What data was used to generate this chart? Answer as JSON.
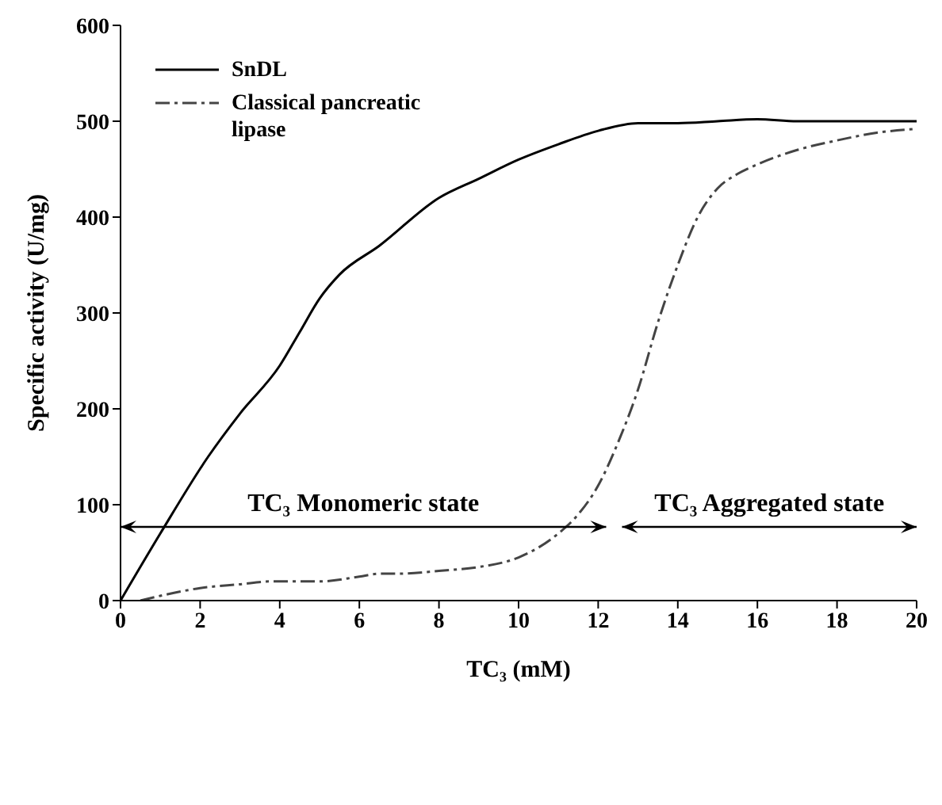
{
  "chart_data": {
    "type": "line",
    "xlabel": "TC₃ (mM)",
    "ylabel": "Specific activity (U/mg)",
    "xlim": [
      0,
      20
    ],
    "xticks": [
      0,
      2,
      4,
      6,
      8,
      10,
      12,
      14,
      16,
      18,
      20
    ],
    "ylim": [
      0,
      600
    ],
    "yticks": [
      0,
      100,
      200,
      300,
      400,
      500,
      600
    ],
    "grid": false,
    "legend": "top left",
    "marker": "none",
    "annotations": [
      "TC₃ Monomeric state",
      "TC₃ Aggregated state"
    ],
    "series": [
      {
        "name": "SnDL",
        "color": "#000000",
        "line_style": "solid",
        "x": [
          0,
          1,
          2.2,
          3,
          4,
          4.5,
          5,
          5.5,
          6.5,
          8,
          9,
          10,
          11,
          12,
          13,
          14,
          15,
          16,
          17,
          18,
          20
        ],
        "values": [
          0,
          70,
          150,
          195,
          245,
          280,
          315,
          340,
          370,
          420,
          440,
          460,
          476,
          490,
          498,
          498,
          500,
          502,
          500,
          500,
          500
        ]
      },
      {
        "name": "Classical pancreatic lipase",
        "color": "#444444",
        "line_style": "dashed",
        "x": [
          0.5,
          1,
          2,
          3,
          3.8,
          5,
          6,
          6.5,
          7,
          8,
          9,
          10,
          11,
          11.5,
          12,
          12.5,
          13,
          13.5,
          14,
          14.5,
          15,
          15.5,
          16,
          17,
          18,
          19,
          20
        ],
        "values": [
          0,
          5,
          13,
          17,
          20,
          20,
          25,
          28,
          28,
          31,
          35,
          45,
          70,
          90,
          120,
          165,
          220,
          290,
          350,
          400,
          430,
          445,
          455,
          470,
          480,
          488,
          492
        ]
      }
    ]
  }
}
